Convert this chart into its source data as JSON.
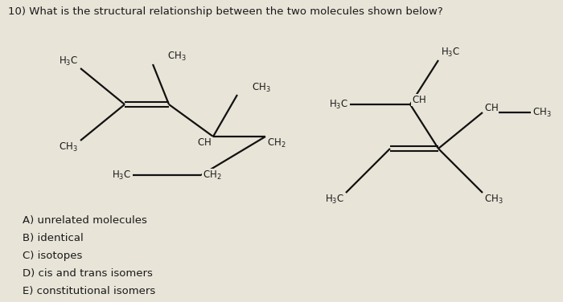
{
  "title": "10) What is the structural relationship between the two molecules shown below?",
  "bg_color": "#e8e4d8",
  "text_color": "#1a1a1a",
  "choices": [
    "A) unrelated molecules",
    "B) identical",
    "C) isotopes",
    "D) cis and trans isomers",
    "E) constitutional isomers"
  ]
}
